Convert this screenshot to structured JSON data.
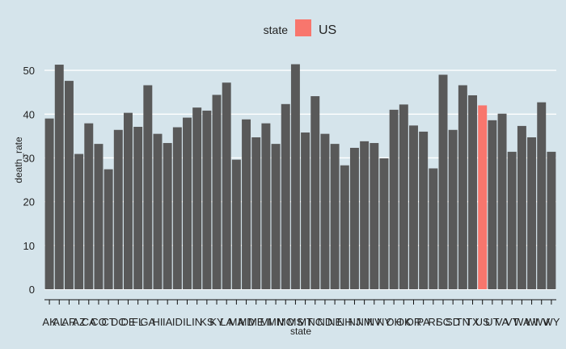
{
  "colors": {
    "background": "#d5e4eb",
    "bar_default": "#595959",
    "bar_highlight": "#f8766d",
    "gridline": "#ffffff",
    "text": "#222222"
  },
  "chart_data": {
    "type": "bar",
    "title": "",
    "xlabel": "state",
    "ylabel": "death_rate",
    "ylim": [
      0,
      55
    ],
    "yticks": [
      0,
      10,
      20,
      30,
      40,
      50
    ],
    "grid": "horizontal",
    "legend": {
      "title": "state",
      "placement": "top",
      "entries": [
        {
          "label": "US",
          "color": "#f8766d"
        }
      ]
    },
    "highlight": "US",
    "categories": [
      "AK",
      "AL",
      "AR",
      "AZ",
      "CA",
      "CO",
      "CT",
      "DC",
      "DE",
      "FL",
      "GA",
      "HI",
      "IA",
      "ID",
      "IL",
      "IN",
      "KS",
      "KY",
      "LA",
      "MA",
      "MD",
      "ME",
      "MI",
      "MN",
      "MO",
      "MS",
      "MT",
      "NC",
      "ND",
      "NE",
      "NH",
      "NJ",
      "NM",
      "NV",
      "NY",
      "OH",
      "OK",
      "OR",
      "PA",
      "RI",
      "SC",
      "SD",
      "TN",
      "TX",
      "US",
      "UT",
      "VA",
      "VT",
      "WA",
      "WI",
      "WV",
      "WY"
    ],
    "values": [
      39.0,
      51.3,
      47.6,
      30.9,
      37.9,
      33.2,
      27.4,
      36.4,
      40.3,
      37.1,
      46.6,
      35.5,
      33.4,
      37.0,
      39.2,
      41.5,
      40.8,
      44.4,
      47.2,
      29.6,
      38.8,
      34.7,
      37.9,
      33.2,
      42.3,
      51.4,
      35.8,
      44.1,
      35.5,
      33.2,
      28.3,
      32.3,
      33.8,
      33.4,
      29.9,
      41.0,
      42.2,
      37.4,
      36.0,
      27.6,
      49.0,
      36.4,
      46.6,
      44.3,
      42.0,
      38.6,
      40.1,
      31.4,
      37.3,
      34.7,
      42.7,
      31.4
    ]
  }
}
